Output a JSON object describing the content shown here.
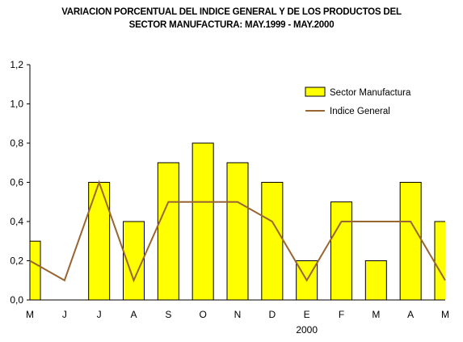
{
  "chart_data": {
    "type": "bar",
    "title_line1": "VARIACION PORCENTUAL DEL INDICE GENERAL Y DE LOS PRODUCTOS DEL",
    "title_line2": "SECTOR MANUFACTURA: MAY.1999 - MAY.2000",
    "categories": [
      "M",
      "J",
      "J",
      "A",
      "S",
      "O",
      "N",
      "D",
      "E",
      "F",
      "M",
      "A",
      "M"
    ],
    "year_label": "2000",
    "year_label_under_index": 8,
    "ylim": [
      0,
      1.2
    ],
    "yticks": [
      "0,0",
      "0,2",
      "0,4",
      "0,6",
      "0,8",
      "1,0",
      "1,2"
    ],
    "grid": false,
    "legend_position": "top-right",
    "series": [
      {
        "name": "Sector Manufactura",
        "kind": "bar",
        "color": "#ffff00",
        "values": [
          0.3,
          0.0,
          0.6,
          0.4,
          0.7,
          0.8,
          0.7,
          0.6,
          0.2,
          0.5,
          0.2,
          0.6,
          0.4
        ]
      },
      {
        "name": "Indice General",
        "kind": "line",
        "color": "#996633",
        "values": [
          0.2,
          0.1,
          0.6,
          0.1,
          0.5,
          0.5,
          0.5,
          0.4,
          0.1,
          0.4,
          0.4,
          0.4,
          0.1
        ]
      }
    ]
  }
}
